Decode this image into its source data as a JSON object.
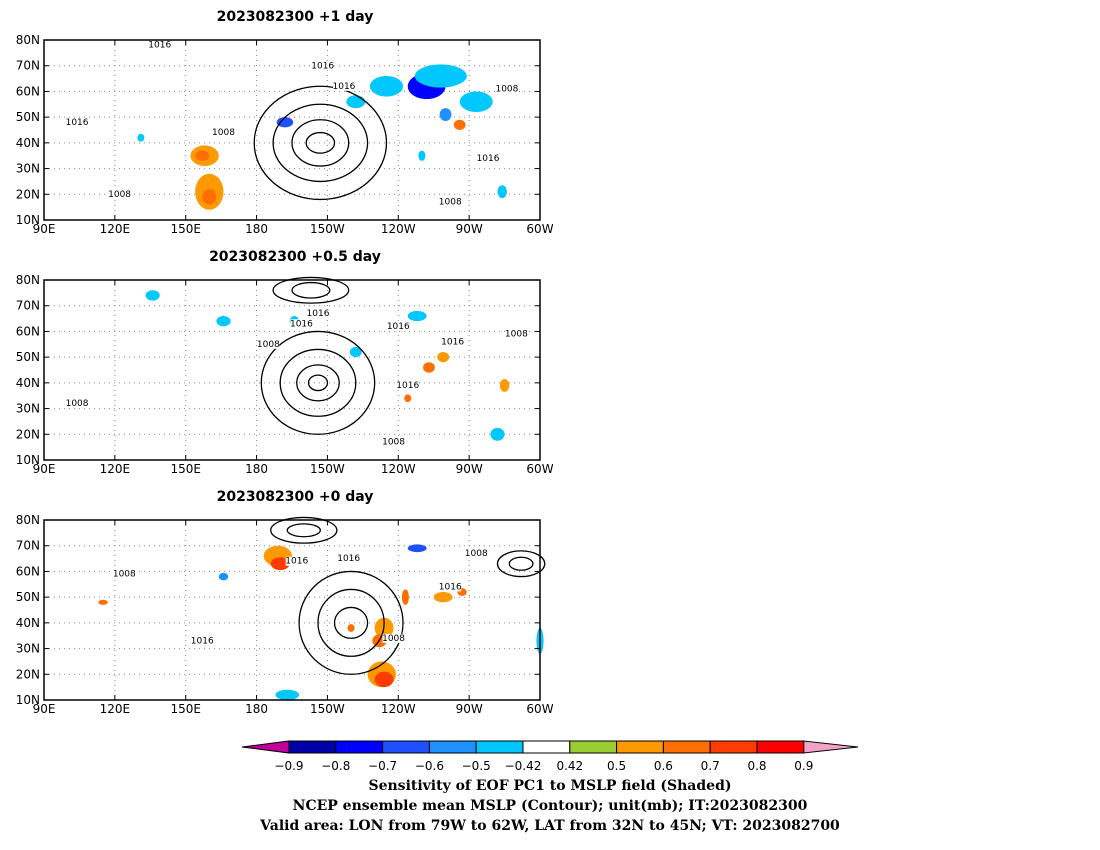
{
  "chart_data": {
    "type": "heatmap",
    "lon_range": [
      90,
      300
    ],
    "lat_range": [
      10,
      80
    ],
    "lon_ticks": [
      "90E",
      "120E",
      "150E",
      "180",
      "150W",
      "120W",
      "90W",
      "60W"
    ],
    "lat_ticks": [
      "10N",
      "20N",
      "30N",
      "40N",
      "50N",
      "60N",
      "70N",
      "80N"
    ],
    "panels": [
      {
        "title": "2023082300  +1  day",
        "contour_labels": [
          {
            "text": "1016",
            "lon": 139,
            "lat": 77
          },
          {
            "text": "1016",
            "lon": 208,
            "lat": 69
          },
          {
            "text": "1016",
            "lon": 217,
            "lat": 61
          },
          {
            "text": "1008",
            "lon": 286,
            "lat": 60
          },
          {
            "text": "1016",
            "lon": 104,
            "lat": 47
          },
          {
            "text": "1008",
            "lon": 166,
            "lat": 43
          },
          {
            "text": "1016",
            "lon": 278,
            "lat": 33
          },
          {
            "text": "1008",
            "lon": 122,
            "lat": 19
          },
          {
            "text": "1008",
            "lon": 262,
            "lat": 16
          }
        ],
        "shaded": [
          {
            "lon": 235,
            "lat": 62,
            "value": -0.5,
            "w": 14,
            "h": 8
          },
          {
            "lon": 252,
            "lat": 62,
            "value": -0.8,
            "w": 16,
            "h": 10
          },
          {
            "lon": 258,
            "lat": 66,
            "value": -0.5,
            "w": 22,
            "h": 9
          },
          {
            "lon": 273,
            "lat": 56,
            "value": -0.5,
            "w": 14,
            "h": 8
          },
          {
            "lon": 260,
            "lat": 51,
            "value": -0.6,
            "w": 5,
            "h": 5
          },
          {
            "lon": 222,
            "lat": 56,
            "value": -0.5,
            "w": 8,
            "h": 5
          },
          {
            "lon": 192,
            "lat": 48,
            "value": -0.7,
            "w": 7,
            "h": 4
          },
          {
            "lon": 266,
            "lat": 47,
            "value": 0.6,
            "w": 5,
            "h": 4
          },
          {
            "lon": 158,
            "lat": 35,
            "value": 0.5,
            "w": 12,
            "h": 8
          },
          {
            "lon": 157,
            "lat": 35,
            "value": 0.6,
            "w": 6,
            "h": 4
          },
          {
            "lon": 160,
            "lat": 21,
            "value": 0.5,
            "w": 12,
            "h": 14
          },
          {
            "lon": 160,
            "lat": 19,
            "value": 0.6,
            "w": 6,
            "h": 6
          },
          {
            "lon": 284,
            "lat": 21,
            "value": -0.5,
            "w": 4,
            "h": 5
          },
          {
            "lon": 250,
            "lat": 35,
            "value": -0.5,
            "w": 3,
            "h": 4
          },
          {
            "lon": 131,
            "lat": 42,
            "value": -0.5,
            "w": 3,
            "h": 3
          }
        ]
      },
      {
        "title": "2023082300  +0.5  day",
        "contour_labels": [
          {
            "text": "1016",
            "lon": 206,
            "lat": 66
          },
          {
            "text": "1016",
            "lon": 199,
            "lat": 62
          },
          {
            "text": "1016",
            "lon": 240,
            "lat": 61
          },
          {
            "text": "1008",
            "lon": 290,
            "lat": 58
          },
          {
            "text": "1016",
            "lon": 263,
            "lat": 55
          },
          {
            "text": "1008",
            "lon": 185,
            "lat": 54
          },
          {
            "text": "1016",
            "lon": 244,
            "lat": 38
          },
          {
            "text": "1008",
            "lon": 104,
            "lat": 31
          },
          {
            "text": "1008",
            "lon": 238,
            "lat": 16
          }
        ],
        "shaded": [
          {
            "lon": 136,
            "lat": 74,
            "value": -0.5,
            "w": 6,
            "h": 4
          },
          {
            "lon": 166,
            "lat": 64,
            "value": -0.5,
            "w": 6,
            "h": 4
          },
          {
            "lon": 196,
            "lat": 64,
            "value": -0.5,
            "w": 4,
            "h": 4
          },
          {
            "lon": 222,
            "lat": 52,
            "value": -0.5,
            "w": 5,
            "h": 4
          },
          {
            "lon": 248,
            "lat": 66,
            "value": -0.5,
            "w": 8,
            "h": 4
          },
          {
            "lon": 259,
            "lat": 50,
            "value": 0.5,
            "w": 5,
            "h": 4
          },
          {
            "lon": 253,
            "lat": 46,
            "value": 0.6,
            "w": 5,
            "h": 4
          },
          {
            "lon": 285,
            "lat": 39,
            "value": 0.5,
            "w": 4,
            "h": 5
          },
          {
            "lon": 282,
            "lat": 20,
            "value": -0.5,
            "w": 6,
            "h": 5
          },
          {
            "lon": 244,
            "lat": 34,
            "value": 0.6,
            "w": 3,
            "h": 3
          }
        ]
      },
      {
        "title": "2023082300  +0  day",
        "contour_labels": [
          {
            "text": "1016",
            "lon": 197,
            "lat": 63
          },
          {
            "text": "1016",
            "lon": 219,
            "lat": 64
          },
          {
            "text": "1008",
            "lon": 273,
            "lat": 66
          },
          {
            "text": "1008",
            "lon": 124,
            "lat": 58
          },
          {
            "text": "1016",
            "lon": 262,
            "lat": 53
          },
          {
            "text": "1008",
            "lon": 238,
            "lat": 33
          },
          {
            "text": "1016",
            "lon": 157,
            "lat": 32
          }
        ],
        "shaded": [
          {
            "lon": 189,
            "lat": 66,
            "value": 0.5,
            "w": 12,
            "h": 8
          },
          {
            "lon": 190,
            "lat": 63,
            "value": 0.7,
            "w": 8,
            "h": 5
          },
          {
            "lon": 234,
            "lat": 38,
            "value": 0.5,
            "w": 8,
            "h": 8
          },
          {
            "lon": 232,
            "lat": 33,
            "value": 0.6,
            "w": 6,
            "h": 5
          },
          {
            "lon": 233,
            "lat": 20,
            "value": 0.5,
            "w": 12,
            "h": 10
          },
          {
            "lon": 234,
            "lat": 18,
            "value": 0.7,
            "w": 8,
            "h": 6
          },
          {
            "lon": 243,
            "lat": 50,
            "value": 0.6,
            "w": 3,
            "h": 6
          },
          {
            "lon": 259,
            "lat": 50,
            "value": 0.5,
            "w": 8,
            "h": 4
          },
          {
            "lon": 267,
            "lat": 52,
            "value": 0.6,
            "w": 4,
            "h": 3
          },
          {
            "lon": 248,
            "lat": 69,
            "value": -0.7,
            "w": 8,
            "h": 3
          },
          {
            "lon": 300,
            "lat": 33,
            "value": -0.5,
            "w": 3,
            "h": 10
          },
          {
            "lon": 193,
            "lat": 12,
            "value": -0.5,
            "w": 10,
            "h": 4
          },
          {
            "lon": 166,
            "lat": 58,
            "value": -0.6,
            "w": 4,
            "h": 3
          },
          {
            "lon": 220,
            "lat": 38,
            "value": 0.6,
            "w": 3,
            "h": 3
          },
          {
            "lon": 115,
            "lat": 48,
            "value": 0.6,
            "w": 4,
            "h": 2
          }
        ]
      }
    ]
  },
  "colorbar": {
    "ticks": [
      "−0.9",
      "−0.8",
      "−0.7",
      "−0.6",
      "−0.5",
      "−0.42",
      "0.42",
      "0.5",
      "0.6",
      "0.7",
      "0.8",
      "0.9"
    ],
    "left_arrow_color": "#c0009a",
    "right_arrow_color": "#f4a3c8",
    "colors": [
      "#0000a8",
      "#0000ff",
      "#1e50ff",
      "#1e90ff",
      "#00c8ff",
      "#ffffff",
      "#9acd32",
      "#ff9900",
      "#ff6e00",
      "#ff3c00",
      "#ff0000"
    ]
  },
  "caption": {
    "line1": "Sensitivity of EOF PC1 to MSLP field (Shaded)",
    "line2": "NCEP ensemble mean MSLP (Contour); unit(mb); IT:2023082300",
    "line3": "Valid area: LON from 79W to 62W, LAT from 32N to 45N; VT: 2023082700"
  }
}
